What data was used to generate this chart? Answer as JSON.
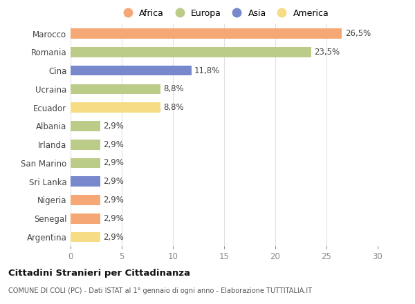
{
  "categories": [
    "Marocco",
    "Romania",
    "Cina",
    "Ucraina",
    "Ecuador",
    "Albania",
    "Irlanda",
    "San Marino",
    "Sri Lanka",
    "Nigeria",
    "Senegal",
    "Argentina"
  ],
  "values": [
    26.5,
    23.5,
    11.8,
    8.8,
    8.8,
    2.9,
    2.9,
    2.9,
    2.9,
    2.9,
    2.9,
    2.9
  ],
  "labels": [
    "26,5%",
    "23,5%",
    "11,8%",
    "8,8%",
    "8,8%",
    "2,9%",
    "2,9%",
    "2,9%",
    "2,9%",
    "2,9%",
    "2,9%",
    "2,9%"
  ],
  "colors": [
    "#F5A875",
    "#BBCC88",
    "#7788CC",
    "#BBCC88",
    "#F5DC85",
    "#BBCC88",
    "#BBCC88",
    "#BBCC88",
    "#7788CC",
    "#F5A875",
    "#F5A875",
    "#F5DC85"
  ],
  "legend": [
    {
      "label": "Africa",
      "color": "#F5A875"
    },
    {
      "label": "Europa",
      "color": "#BBCC88"
    },
    {
      "label": "Asia",
      "color": "#7788CC"
    },
    {
      "label": "America",
      "color": "#F5DC85"
    }
  ],
  "xlim": [
    0,
    30
  ],
  "xticks": [
    0,
    5,
    10,
    15,
    20,
    25,
    30
  ],
  "title": "Cittadini Stranieri per Cittadinanza",
  "subtitle": "COMUNE DI COLI (PC) - Dati ISTAT al 1° gennaio di ogni anno - Elaborazione TUTTITALIA.IT",
  "background_color": "#ffffff",
  "bar_height": 0.55,
  "grid_color": "#e0e0e0",
  "label_fontsize": 8.5,
  "ytick_fontsize": 8.5,
  "xtick_fontsize": 8.5
}
